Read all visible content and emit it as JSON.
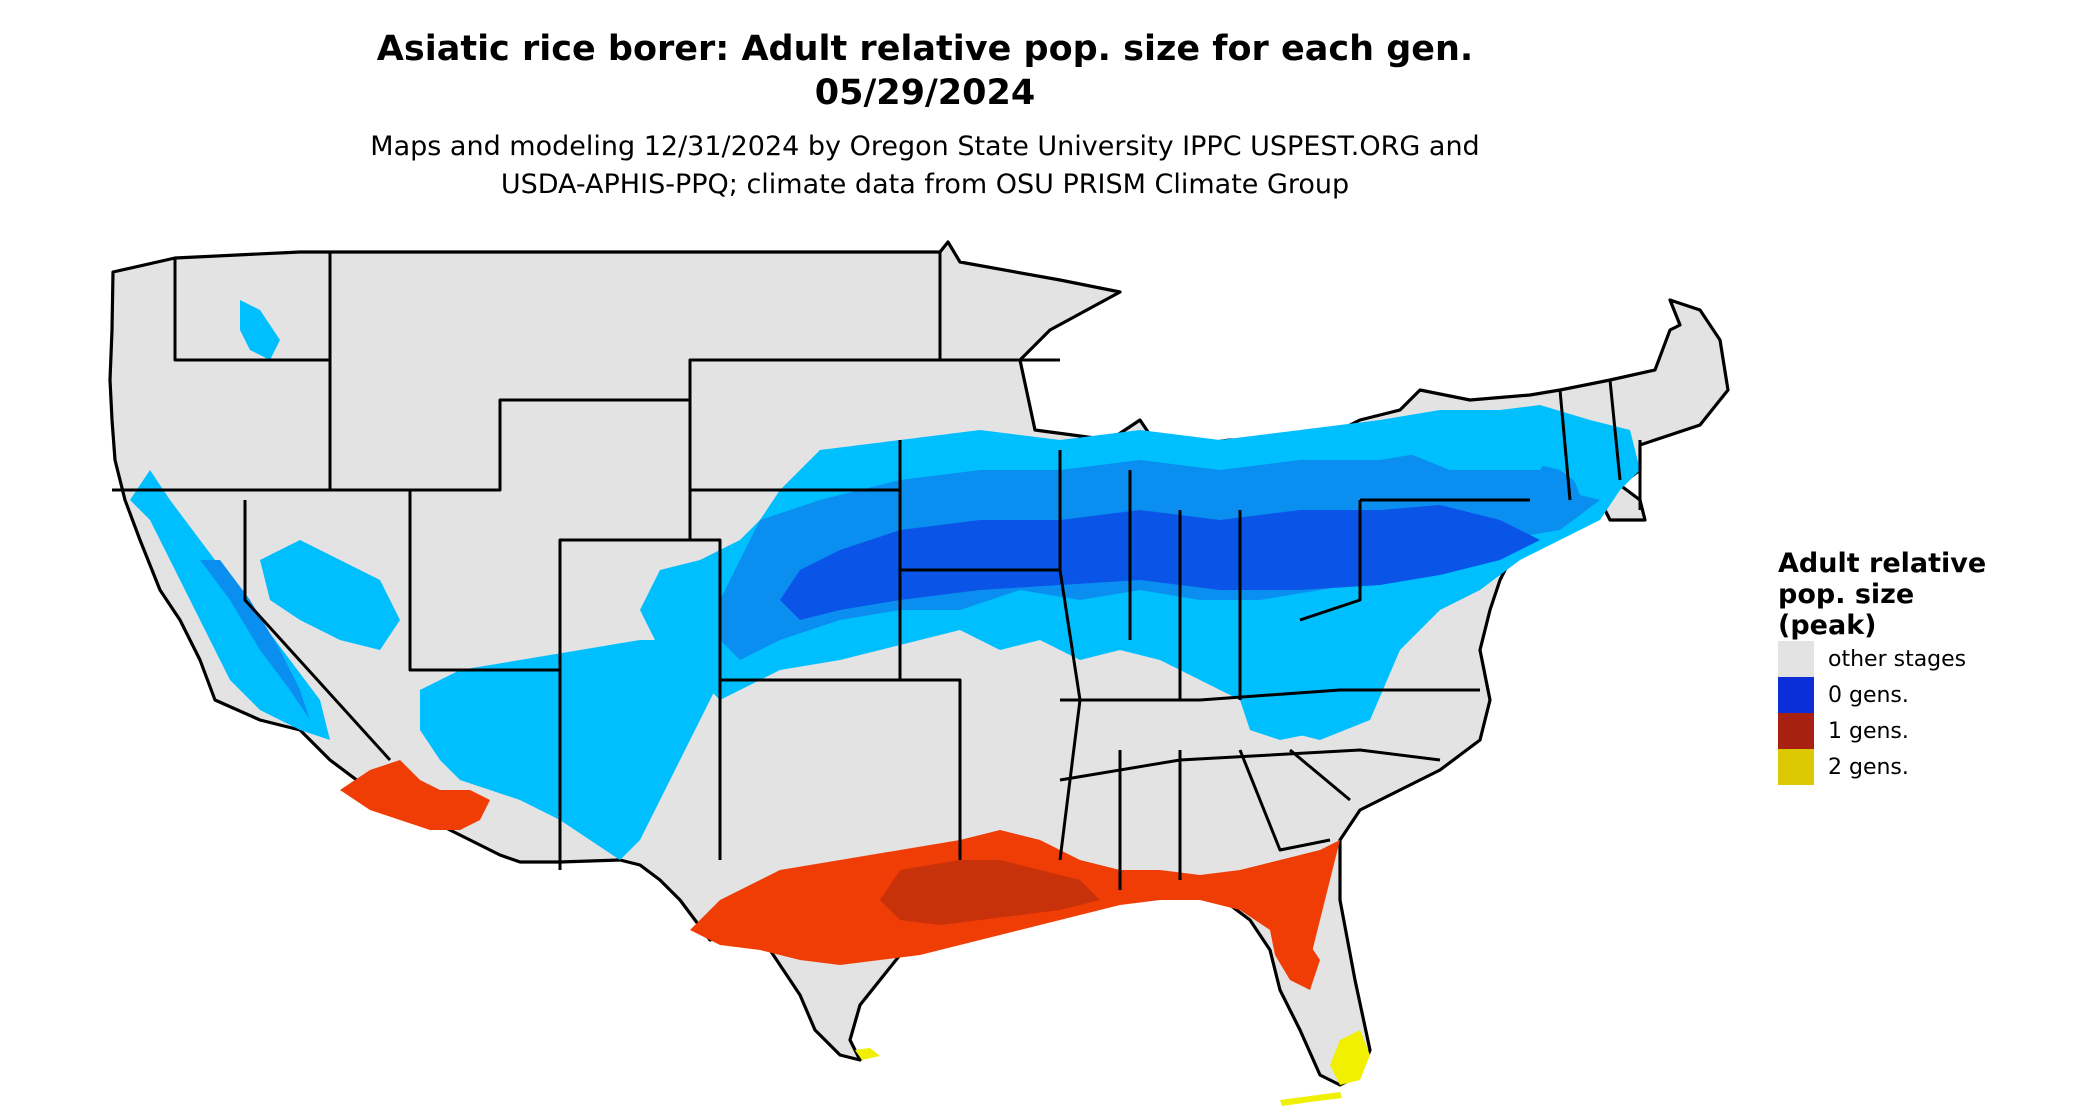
{
  "title": {
    "line1": "Asiatic rice borer: Adult relative pop. size for each gen.",
    "line2": "05/29/2024"
  },
  "subtitle": {
    "line1": "Maps and modeling 12/31/2024 by Oregon State University IPPC USPEST.ORG and",
    "line2": "USDA-APHIS-PPQ; climate data from OSU PRISM Climate Group"
  },
  "legend": {
    "title_lines": [
      "Adult relative",
      "pop. size",
      "(peak)"
    ],
    "items": [
      {
        "label": "other stages",
        "color": "#e3e3e3"
      },
      {
        "label": "0 gens.",
        "color": "#0a2ed8"
      },
      {
        "label": "1 gens.",
        "color": "#a8200f"
      },
      {
        "label": "2 gens.",
        "color": "#dcc800"
      }
    ]
  },
  "map_colors": {
    "base": "#e3e3e3",
    "blue_light": "#00bfff",
    "blue_mid": "#0a8ff0",
    "blue_dark": "#0a55e8",
    "red_orange": "#f03c05",
    "red_dark": "#c8320a",
    "yellow": "#f0f000"
  }
}
